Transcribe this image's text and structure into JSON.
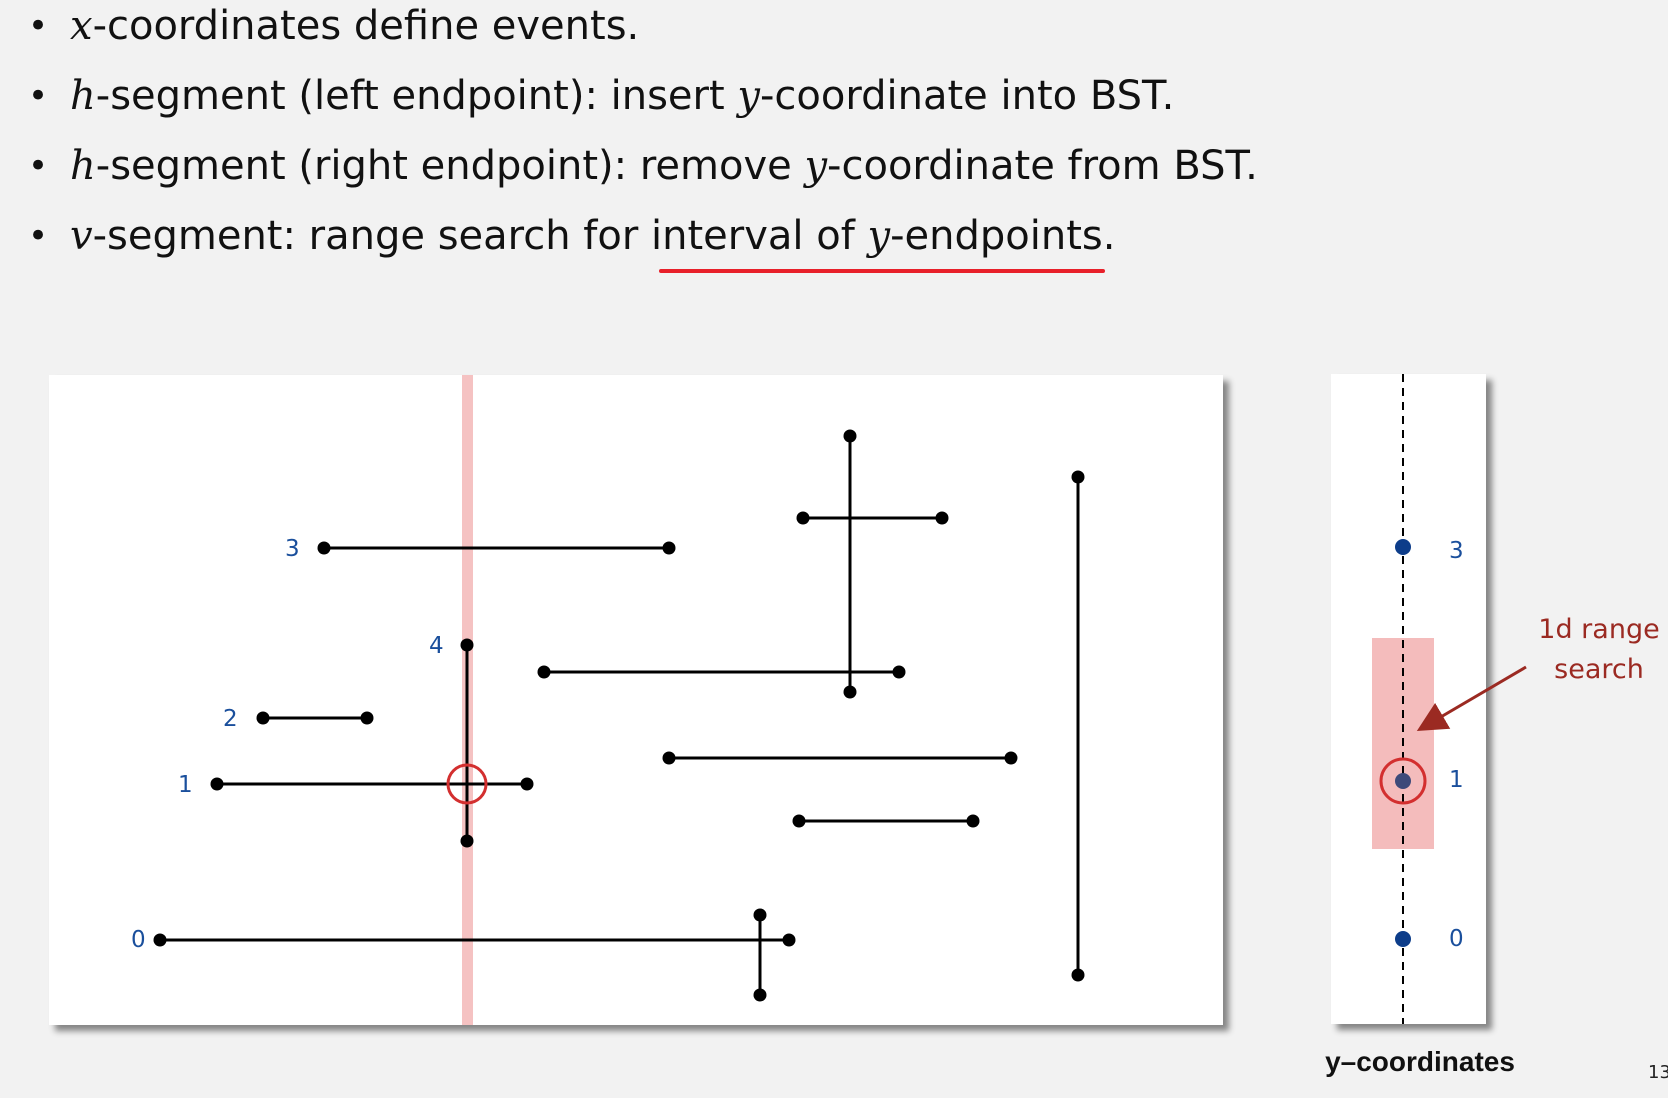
{
  "bullets": [
    {
      "var": "x",
      "text": "-coordinates define events."
    },
    {
      "var": "h",
      "text": "-segment (left endpoint):  insert ",
      "var2": "y",
      "text2": "-coordinate into BST."
    },
    {
      "var": "h",
      "text": "-segment (right endpoint):  remove ",
      "var2": "y",
      "text2": "-coordinate from BST."
    },
    {
      "var": "v",
      "text": "-segment:  range search for ",
      "ul_a": "interval of ",
      "ul_var": "y",
      "ul_b": "-endpoints",
      "tail": "."
    }
  ],
  "bullet_symbol": "•",
  "segment_labels": [
    "0",
    "1",
    "2",
    "3",
    "4"
  ],
  "y_labels": [
    "3",
    "1",
    "0"
  ],
  "y_caption": "y–coordinates",
  "range_label_line1": "1d range",
  "range_label_line2": "search",
  "page_number": "13",
  "colors": {
    "background": "#f2f2f2",
    "sweep_line": "#f5c2c2",
    "highlight_circle": "#d32f2f",
    "label_blue": "#1a4f9c",
    "annotation_red": "#9b2a22",
    "point_blue": "#0d3d8a",
    "range_box": "#f4bcbc",
    "underline": "#e8202a"
  }
}
